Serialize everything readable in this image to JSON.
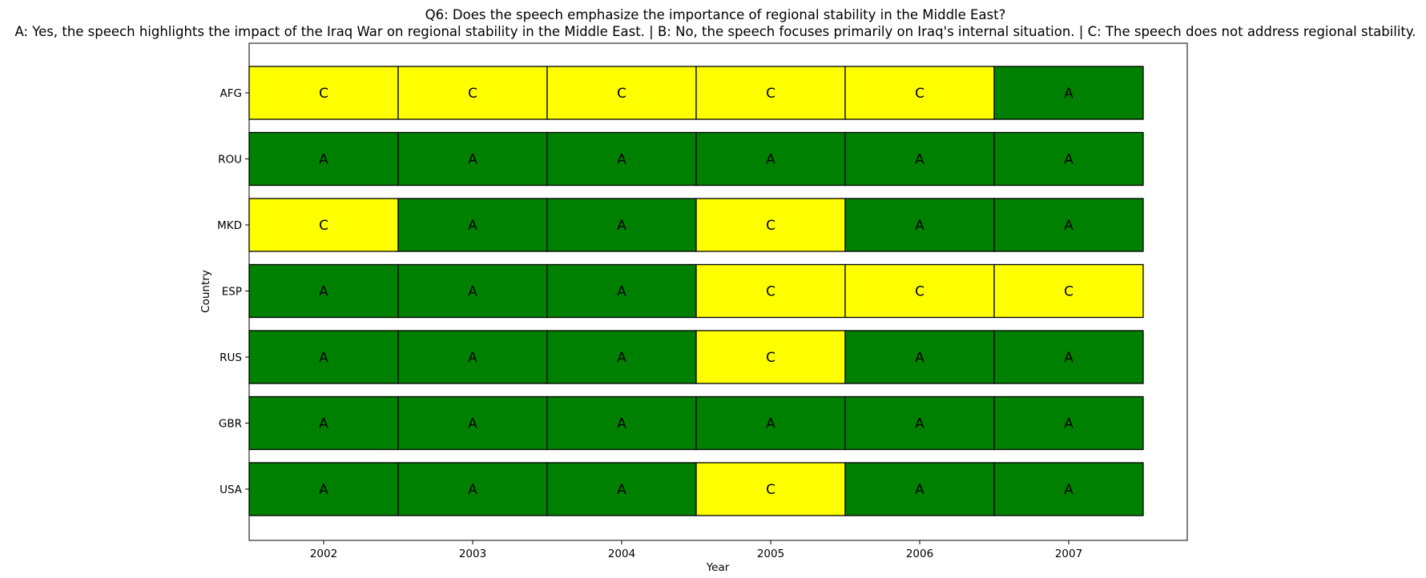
{
  "chart_data": {
    "type": "heatmap",
    "title": "Q6: Does the speech emphasize the importance of regional stability in the Middle East?",
    "subtitle": "A: Yes, the speech highlights the impact of the Iraq War on regional stability in the Middle East. | B: No, the speech focuses primarily on Iraq's internal situation. | C: The speech does not address regional stability.",
    "xlabel": "Year",
    "ylabel": "Country",
    "x": [
      "2002",
      "2003",
      "2004",
      "2005",
      "2006",
      "2007"
    ],
    "y": [
      "USA",
      "GBR",
      "RUS",
      "ESP",
      "MKD",
      "ROU",
      "AFG"
    ],
    "colors": {
      "A": "#008000",
      "C": "#ffff00"
    },
    "rows": [
      {
        "country": "USA",
        "values": [
          "A",
          "A",
          "A",
          "C",
          "A",
          "A"
        ]
      },
      {
        "country": "GBR",
        "values": [
          "A",
          "A",
          "A",
          "A",
          "A",
          "A"
        ]
      },
      {
        "country": "RUS",
        "values": [
          "A",
          "A",
          "A",
          "C",
          "A",
          "A"
        ]
      },
      {
        "country": "ESP",
        "values": [
          "A",
          "A",
          "A",
          "C",
          "C",
          "C"
        ]
      },
      {
        "country": "MKD",
        "values": [
          "C",
          "A",
          "A",
          "C",
          "A",
          "A"
        ]
      },
      {
        "country": "ROU",
        "values": [
          "A",
          "A",
          "A",
          "A",
          "A",
          "A"
        ]
      },
      {
        "country": "AFG",
        "values": [
          "C",
          "C",
          "C",
          "C",
          "C",
          "A"
        ]
      }
    ]
  }
}
